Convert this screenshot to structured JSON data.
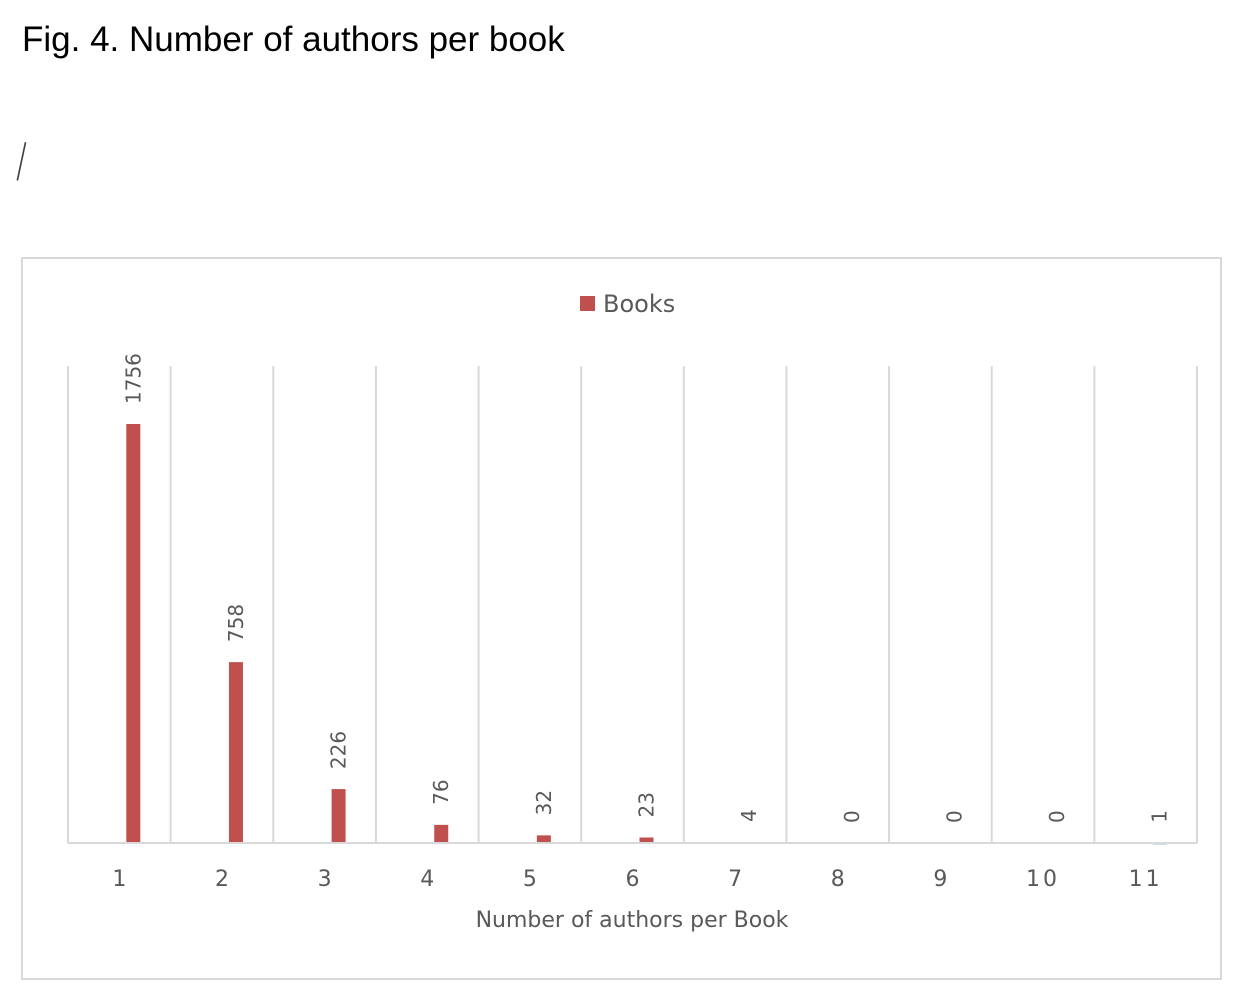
{
  "caption": "Fig. 4. Number of authors per book",
  "decoration": "/",
  "chart_data": {
    "type": "bar",
    "title": "",
    "xlabel": "Number of authors per Book",
    "ylabel": "",
    "categories": [
      "1",
      "2",
      "3",
      "4",
      "5",
      "6",
      "7",
      "8",
      "9",
      "10",
      "11"
    ],
    "series": [
      {
        "name": "Books",
        "values": [
          1756,
          758,
          226,
          76,
          32,
          23,
          4,
          0,
          0,
          0,
          1
        ],
        "data_labels": [
          "1756",
          "758",
          "226",
          "76",
          "32",
          "23",
          "4",
          "0",
          "0",
          "0",
          "1"
        ]
      }
    ],
    "ylim": [
      0,
      1756
    ],
    "grid": "vertical",
    "legend_position": "top",
    "colors": {
      "bar": "#c0504d",
      "last_bar": "#4f81bd",
      "gridline": "#d9d9d9",
      "text": "#595959"
    }
  }
}
